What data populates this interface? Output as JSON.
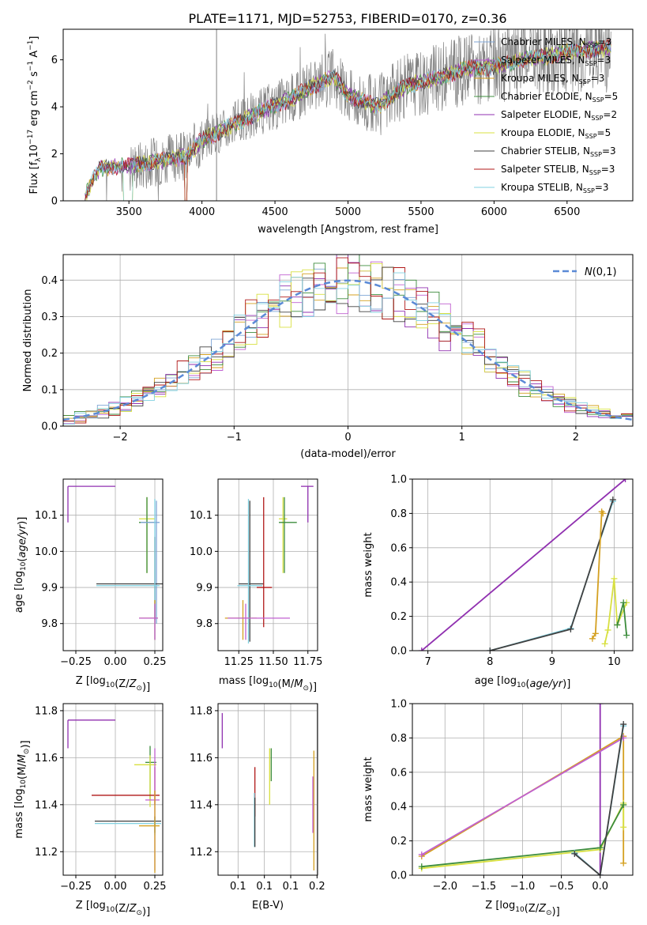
{
  "figure": {
    "title": "PLATE=1171, MJD=52753, FIBERID=0170, z=0.36"
  },
  "series_styles": [
    {
      "name": "Chabrier MILES",
      "nssp": "3",
      "color": "#7fa6d6"
    },
    {
      "name": "Salpeter MILES",
      "nssp": "3",
      "color": "#c060d0"
    },
    {
      "name": "Kroupa MILES",
      "nssp": "3",
      "color": "#d4a020"
    },
    {
      "name": "Chabrier ELODIE",
      "nssp": "5",
      "color": "#3c8c3c"
    },
    {
      "name": "Salpeter ELODIE",
      "nssp": "2",
      "color": "#9030b0"
    },
    {
      "name": "Kroupa ELODIE",
      "nssp": "5",
      "color": "#d8e040"
    },
    {
      "name": "Chabrier STELIB",
      "nssp": "3",
      "color": "#404040"
    },
    {
      "name": "Salpeter STELIB",
      "nssp": "3",
      "color": "#b01818"
    },
    {
      "name": "Kroupa STELIB",
      "nssp": "3",
      "color": "#80d0e0"
    }
  ],
  "chart_data": [
    {
      "id": "spectrum",
      "type": "line",
      "xlabel": "wavelength [Angstrom, rest frame]",
      "ylabel_parts": {
        "a": "Flux [f",
        "sub": "λ",
        "b": "10",
        "sup1": "−17",
        "c": " erg cm",
        "sup2": "−2",
        "d": " s",
        "sup3": "−1",
        "e": " A",
        "sup4": "−1",
        "f": "]"
      },
      "xlim": [
        3050,
        6950
      ],
      "ylim": [
        0,
        7.3
      ],
      "xticks": [
        3500,
        4000,
        4500,
        5000,
        5500,
        6000,
        6500
      ],
      "yticks": [
        0,
        2,
        4,
        6
      ],
      "grid": false,
      "legend_position": "top-right",
      "data_color": "#808080",
      "model_anchor_points": {
        "x": [
          3200,
          3300,
          3500,
          3700,
          3900,
          4000,
          4200,
          4400,
          4600,
          4800,
          4900,
          5000,
          5200,
          5400,
          5600,
          5800,
          6000,
          6200,
          6400,
          6600,
          6800
        ],
        "y": [
          0.2,
          1.4,
          1.5,
          1.7,
          1.9,
          2.6,
          3.2,
          3.8,
          4.3,
          5.0,
          5.3,
          4.5,
          4.0,
          4.9,
          5.2,
          5.6,
          5.7,
          6.0,
          6.2,
          6.4,
          6.5
        ]
      }
    },
    {
      "id": "residual-histogram",
      "type": "line",
      "xlabel": "(data-model)/error",
      "ylabel": "Normed distribution",
      "xlim": [
        -2.5,
        2.5
      ],
      "ylim": [
        0,
        0.47
      ],
      "xticks": [
        -2,
        -1,
        0,
        1,
        2
      ],
      "yticks": [
        0.0,
        0.1,
        0.2,
        0.3,
        0.4
      ],
      "grid": true,
      "legend": {
        "label": "N(0,1)",
        "position": "top-right",
        "color": "#5b8ad6"
      },
      "gaussian": {
        "mu": 0,
        "sigma": 1
      }
    },
    {
      "id": "age-vs-z",
      "type": "scatter",
      "xlabel": "Z [log10(Z/Z⊙)]",
      "ylabel": "age  [log10(age/yr)]",
      "xlim": [
        -0.33,
        0.3
      ],
      "ylim": [
        9.725,
        10.2
      ],
      "xticks": [
        -0.25,
        0.0,
        0.25
      ],
      "yticks": [
        9.8,
        9.9,
        10.0,
        10.1
      ],
      "grid": true,
      "points": [
        {
          "x": -0.3,
          "y": 10.18,
          "xerr": [
            0,
            0.3
          ],
          "yerr": [
            0.1,
            0
          ],
          "series": 4
        },
        {
          "x": 0.2,
          "y": 10.09,
          "xerr": [
            0.05,
            0.05
          ],
          "yerr": [
            0.15,
            0.06
          ],
          "series": 5
        },
        {
          "x": 0.2,
          "y": 10.08,
          "xerr": [
            0.05,
            0.05
          ],
          "yerr": [
            0.14,
            0.07
          ],
          "series": 3
        },
        {
          "x": 0.26,
          "y": 10.08,
          "xerr": [
            0.1,
            0.02
          ],
          "yerr": [
            0.28,
            0.06
          ],
          "series": 0
        },
        {
          "x": 0.25,
          "y": 9.91,
          "xerr": [
            0.37,
            0.05
          ],
          "yerr": [
            0.1,
            0.13
          ],
          "series": 6
        },
        {
          "x": 0.25,
          "y": 9.905,
          "xerr": [
            0.37,
            0.03
          ],
          "yerr": [
            0.15,
            0.24
          ],
          "series": 8
        },
        {
          "x": 0.25,
          "y": 9.815,
          "xerr": [
            0.1,
            0.02
          ],
          "yerr": [
            0.06,
            0.05
          ],
          "series": 2
        },
        {
          "x": 0.25,
          "y": 9.815,
          "xerr": [
            0.1,
            0.02
          ],
          "yerr": [
            0.06,
            0.04
          ],
          "series": 1
        }
      ]
    },
    {
      "id": "age-vs-mass",
      "type": "scatter",
      "xlabel": "mass [log10(M/M⊙)]",
      "ylabel": "",
      "xlim": [
        11.1,
        11.82
      ],
      "ylim": [
        9.725,
        10.2
      ],
      "xticks": [
        11.25,
        11.5,
        11.75
      ],
      "yticks": [
        9.8,
        9.9,
        10.0,
        10.1
      ],
      "grid": true,
      "points": [
        {
          "x": 11.75,
          "y": 10.18,
          "xerr": [
            0.05,
            0.04
          ],
          "yerr": [
            0.1,
            0
          ],
          "series": 4
        },
        {
          "x": 11.57,
          "y": 10.09,
          "xerr": [
            0.03,
            0.03
          ],
          "yerr": [
            0.15,
            0.06
          ],
          "series": 5
        },
        {
          "x": 11.58,
          "y": 10.08,
          "xerr": [
            0.04,
            0.09
          ],
          "yerr": [
            0.14,
            0.07
          ],
          "series": 3
        },
        {
          "x": 11.33,
          "y": 9.91,
          "xerr": [
            0.08,
            0.1
          ],
          "yerr": [
            0.16,
            0.23
          ],
          "series": 6
        },
        {
          "x": 11.32,
          "y": 9.905,
          "xerr": [
            0.08,
            0.1
          ],
          "yerr": [
            0.16,
            0.24
          ],
          "series": 8
        },
        {
          "x": 11.43,
          "y": 9.9,
          "xerr": [
            0.05,
            0.06
          ],
          "yerr": [
            0.11,
            0.25
          ],
          "series": 7
        },
        {
          "x": 11.28,
          "y": 9.815,
          "xerr": [
            0.13,
            0.1
          ],
          "yerr": [
            0.06,
            0.05
          ],
          "series": 2
        },
        {
          "x": 11.3,
          "y": 9.815,
          "xerr": [
            0.13,
            0.32
          ],
          "yerr": [
            0.06,
            0.04
          ],
          "series": 1
        }
      ]
    },
    {
      "id": "mass-weight-vs-age",
      "type": "line",
      "xlabel": "age  [log10(age/yr)]",
      "ylabel": "mass weight",
      "xlim": [
        6.75,
        10.3
      ],
      "ylim": [
        0,
        1
      ],
      "xticks": [
        7,
        8,
        9,
        10
      ],
      "yticks": [
        0.0,
        0.2,
        0.4,
        0.6,
        0.8,
        1.0
      ],
      "grid": true,
      "series": [
        {
          "series": 4,
          "x": [
            6.9,
            10.18
          ],
          "y": [
            0.0,
            1.0
          ]
        },
        {
          "series": 8,
          "x": [
            8.0,
            9.3,
            9.98
          ],
          "y": [
            0.0,
            0.13,
            0.87
          ]
        },
        {
          "series": 6,
          "x": [
            8.0,
            9.3,
            9.98
          ],
          "y": [
            0.0,
            0.125,
            0.88
          ]
        },
        {
          "series": 2,
          "x": [
            9.65,
            9.7,
            9.8,
            9.82
          ],
          "y": [
            0.07,
            0.1,
            0.81,
            0.8
          ]
        },
        {
          "series": 5,
          "x": [
            9.85,
            9.9,
            10.0,
            10.05,
            10.2
          ],
          "y": [
            0.04,
            0.12,
            0.42,
            0.15,
            0.28
          ]
        },
        {
          "series": 3,
          "x": [
            10.05,
            10.15,
            10.2
          ],
          "y": [
            0.15,
            0.28,
            0.09
          ]
        }
      ]
    },
    {
      "id": "mass-vs-z",
      "type": "scatter",
      "xlabel": "Z [log10(Z/Z⊙)]",
      "ylabel": "mass [log10(M/M⊙)]",
      "xlim": [
        -0.33,
        0.3
      ],
      "ylim": [
        11.1,
        11.83
      ],
      "xticks": [
        -0.25,
        0.0,
        0.25
      ],
      "yticks": [
        11.2,
        11.4,
        11.6,
        11.8
      ],
      "grid": true,
      "points": [
        {
          "x": -0.3,
          "y": 11.76,
          "xerr": [
            0,
            0.3
          ],
          "yerr": [
            0.12,
            0
          ],
          "series": 4
        },
        {
          "x": 0.22,
          "y": 11.58,
          "xerr": [
            0.03,
            0.04
          ],
          "yerr": [
            0.16,
            0.07
          ],
          "series": 3
        },
        {
          "x": 0.22,
          "y": 11.57,
          "xerr": [
            0.1,
            0.04
          ],
          "yerr": [
            0.18,
            0.04
          ],
          "series": 5
        },
        {
          "x": 0.25,
          "y": 11.44,
          "xerr": [
            0.4,
            0.03
          ],
          "yerr": [
            0.04,
            0.12
          ],
          "series": 7
        },
        {
          "x": 0.25,
          "y": 11.42,
          "xerr": [
            0.06,
            0.03
          ],
          "yerr": [
            0.3,
            0.22
          ],
          "series": 1
        },
        {
          "x": 0.25,
          "y": 11.33,
          "xerr": [
            0.38,
            0.04
          ],
          "yerr": [
            0.05,
            0.02
          ],
          "series": 6
        },
        {
          "x": 0.25,
          "y": 11.32,
          "xerr": [
            0.38,
            0.04
          ],
          "yerr": [
            0.05,
            0.02
          ],
          "series": 8
        },
        {
          "x": 0.25,
          "y": 11.31,
          "xerr": [
            0.1,
            0.03
          ],
          "yerr": [
            0.2,
            0.15
          ],
          "series": 2
        }
      ]
    },
    {
      "id": "mass-vs-ebv",
      "type": "scatter",
      "xlabel": "E(B-V)",
      "ylabel": "",
      "xlim": [
        0.012,
        0.201
      ],
      "ylim": [
        11.1,
        11.83
      ],
      "xticks": [
        0.05,
        0.1,
        0.15,
        0.2
      ],
      "yticks": [
        11.2,
        11.4,
        11.6,
        11.8
      ],
      "grid": true,
      "points": [
        {
          "x": 0.02,
          "y": 11.72,
          "yerr": [
            0.08,
            0.07
          ],
          "series": 4
        },
        {
          "x": 0.082,
          "y": 11.45,
          "yerr": [
            0.1,
            0.11
          ],
          "series": 7
        },
        {
          "x": 0.081,
          "y": 11.3,
          "yerr": [
            0.08,
            0.15
          ],
          "series": 8
        },
        {
          "x": 0.082,
          "y": 11.32,
          "yerr": [
            0.1,
            0.11
          ],
          "series": 6
        },
        {
          "x": 0.11,
          "y": 11.53,
          "yerr": [
            0.13,
            0.11
          ],
          "series": 5
        },
        {
          "x": 0.113,
          "y": 11.58,
          "yerr": [
            0.08,
            0.06
          ],
          "series": 3
        },
        {
          "x": 0.194,
          "y": 11.42,
          "yerr": [
            0.3,
            0.21
          ],
          "series": 2
        },
        {
          "x": 0.192,
          "y": 11.4,
          "yerr": [
            0.12,
            0.12
          ],
          "series": 1
        }
      ]
    },
    {
      "id": "mass-weight-vs-z",
      "type": "line",
      "xlabel": "Z [log10(Z/Z⊙)]",
      "ylabel": "mass weight",
      "xlim": [
        -2.42,
        0.42
      ],
      "ylim": [
        0,
        1
      ],
      "xticks": [
        -2.0,
        -1.5,
        -1.0,
        -0.5,
        0.0
      ],
      "yticks": [
        0.0,
        0.2,
        0.4,
        0.6,
        0.8,
        1.0
      ],
      "grid": true,
      "series": [
        {
          "series": 4,
          "x": [
            0.0,
            0.0
          ],
          "y": [
            0.0,
            1.0
          ]
        },
        {
          "series": 2,
          "x": [
            -2.3,
            0.3,
            0.3,
            0.3
          ],
          "y": [
            0.11,
            0.81,
            0.07,
            0.41
          ]
        },
        {
          "series": 1,
          "x": [
            -2.3,
            0.3
          ],
          "y": [
            0.12,
            0.8
          ]
        },
        {
          "series": 5,
          "x": [
            -2.3,
            0.0,
            0.3,
            0.3
          ],
          "y": [
            0.04,
            0.15,
            0.42,
            0.28
          ]
        },
        {
          "series": 3,
          "x": [
            -2.3,
            0.0,
            0.3
          ],
          "y": [
            0.05,
            0.16,
            0.41
          ]
        },
        {
          "series": 8,
          "x": [
            -0.33,
            0.0,
            0.3
          ],
          "y": [
            0.13,
            0.0,
            0.87
          ]
        },
        {
          "series": 6,
          "x": [
            -0.33,
            0.0,
            0.3
          ],
          "y": [
            0.125,
            0.0,
            0.88
          ]
        }
      ]
    }
  ]
}
